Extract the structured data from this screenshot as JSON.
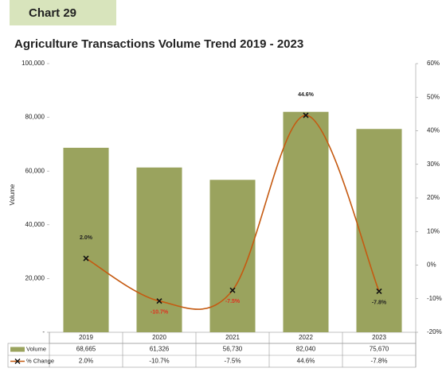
{
  "header": "Chart 29",
  "chart_data": {
    "type": "bar-line",
    "title": "Agriculture Transactions Volume Trend 2019 - 2023",
    "ylabel": "Volume",
    "categories": [
      "2019",
      "2020",
      "2021",
      "2022",
      "2023"
    ],
    "series": [
      {
        "name": "Volume",
        "type": "bar",
        "color": "#9aa35e",
        "values": [
          68665,
          61326,
          56730,
          82040,
          75670
        ],
        "value_labels": [
          "68,665",
          "61,326",
          "56,730",
          "82,040",
          "75,670"
        ]
      },
      {
        "name": "% Change",
        "type": "line",
        "axis": "y2",
        "color": "#c55a11",
        "values": [
          2.0,
          -10.7,
          -7.5,
          44.6,
          -7.8
        ],
        "value_labels": [
          "2.0%",
          "-10.7%",
          "-7.5%",
          "44.6%",
          "-7.8%"
        ],
        "label_colors": [
          "#222222",
          "#e03020",
          "#e03020",
          "#222222",
          "#222222"
        ]
      }
    ],
    "ylim": [
      0,
      100000
    ],
    "yticks": [
      {
        "value": 0,
        "label": "-"
      },
      {
        "value": 20000,
        "label": "20,000"
      },
      {
        "value": 40000,
        "label": "40,000"
      },
      {
        "value": 60000,
        "label": "60,000"
      },
      {
        "value": 80000,
        "label": "80,000"
      },
      {
        "value": 100000,
        "label": "100,000"
      }
    ],
    "y2lim": [
      -20,
      60
    ],
    "y2ticks": [
      {
        "value": -20,
        "label": "-20%"
      },
      {
        "value": -10,
        "label": "-10%"
      },
      {
        "value": 0,
        "label": "0%"
      },
      {
        "value": 10,
        "label": "10%"
      },
      {
        "value": 20,
        "label": "20%"
      },
      {
        "value": 30,
        "label": "30%"
      },
      {
        "value": 40,
        "label": "40%"
      },
      {
        "value": 50,
        "label": "50%"
      },
      {
        "value": 60,
        "label": "60%"
      }
    ],
    "grid": false
  }
}
